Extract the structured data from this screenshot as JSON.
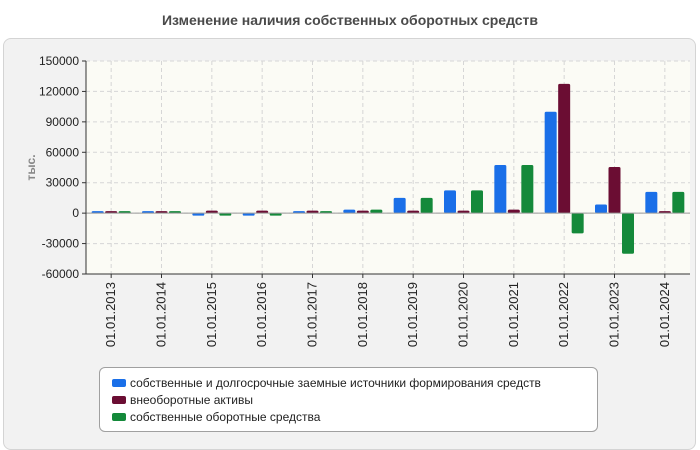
{
  "title": "Изменение наличия собственных оборотных средств",
  "colors": {
    "s1": "#1a6fe8",
    "s2": "#6b0d33",
    "s3": "#14893a"
  },
  "chart_data": {
    "type": "bar",
    "title": "Изменение наличия собственных оборотных средств",
    "ylabel": "тыс.",
    "xlabel": "",
    "ylim": [
      -60000,
      150000
    ],
    "yticks": [
      150000,
      120000,
      90000,
      60000,
      30000,
      0,
      -30000,
      -60000
    ],
    "grid": true,
    "legend_position": "bottom",
    "categories": [
      "01.01.2013",
      "01.01.2014",
      "01.01.2015",
      "01.01.2016",
      "01.01.2017",
      "01.01.2018",
      "01.01.2019",
      "01.01.2020",
      "01.01.2021",
      "01.01.2022",
      "01.01.2023",
      "01.01.2024"
    ],
    "series": [
      {
        "name": "собственные и долгосрочные заемные источники формирования средств",
        "values": [
          1500,
          1500,
          -2500,
          -2500,
          700,
          3500,
          15000,
          22500,
          47500,
          100000,
          8500,
          21000
        ]
      },
      {
        "name": "внеоборотные активы",
        "values": [
          1500,
          1500,
          2500,
          2500,
          2500,
          2500,
          2500,
          2500,
          3500,
          127500,
          45500,
          1500
        ]
      },
      {
        "name": "собственные оборотные средства",
        "values": [
          1500,
          1500,
          -2500,
          -2500,
          700,
          3500,
          15000,
          22500,
          47500,
          -20000,
          -40000,
          21000
        ]
      }
    ]
  }
}
